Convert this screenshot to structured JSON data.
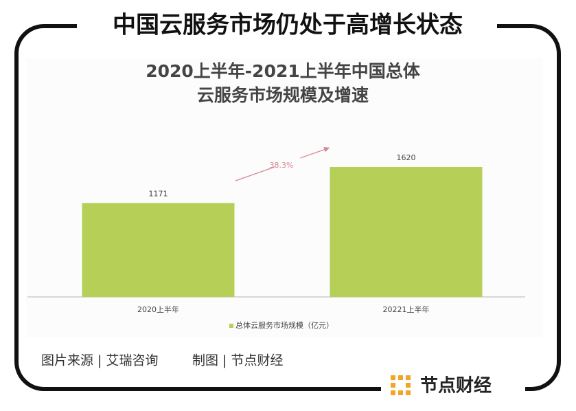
{
  "header": {
    "title": "中国云服务市场仍处于高增长状态"
  },
  "chart_data": {
    "type": "bar",
    "title_lines": [
      "2020上半年-2021上半年中国总体",
      "云服务市场规模及增速"
    ],
    "categories": [
      "2020上半年",
      "20221上半年"
    ],
    "series": [
      {
        "name": "总体云服务市场规模（亿元）",
        "color": "#b5cf57",
        "values": [
          1171,
          1620
        ]
      }
    ],
    "annotation": "38.3%",
    "annotation_color": "#d9868f"
  },
  "footer": {
    "source": [
      "图片来源 | 艾瑞咨询",
      "制图 | 节点财经"
    ]
  },
  "logo": {
    "text": "节点财经"
  }
}
